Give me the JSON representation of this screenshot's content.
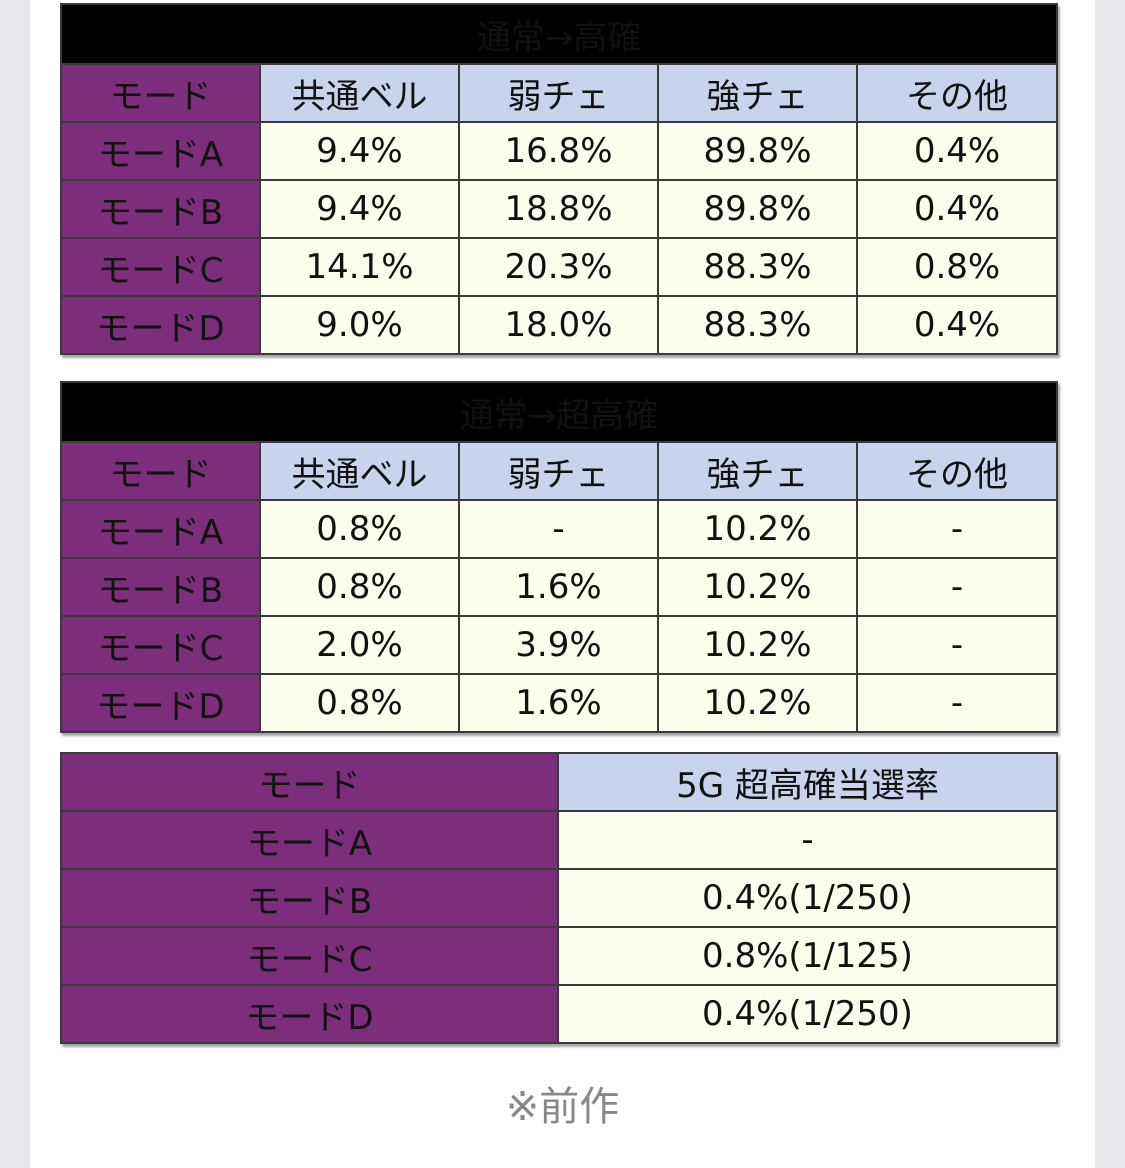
{
  "table1": {
    "title": "通常→高確",
    "headers": [
      "モード",
      "共通ベル",
      "弱チェ",
      "強チェ",
      "その他"
    ],
    "rows": [
      [
        "モードA",
        "9.4%",
        "16.8%",
        "89.8%",
        "0.4%"
      ],
      [
        "モードB",
        "9.4%",
        "18.8%",
        "89.8%",
        "0.4%"
      ],
      [
        "モードC",
        "14.1%",
        "20.3%",
        "88.3%",
        "0.8%"
      ],
      [
        "モードD",
        "9.0%",
        "18.0%",
        "88.3%",
        "0.4%"
      ]
    ]
  },
  "table2": {
    "title": "通常→超高確",
    "headers": [
      "モード",
      "共通ベル",
      "弱チェ",
      "強チェ",
      "その他"
    ],
    "rows": [
      [
        "モードA",
        "0.8%",
        "-",
        "10.2%",
        "-"
      ],
      [
        "モードB",
        "0.8%",
        "1.6%",
        "10.2%",
        "-"
      ],
      [
        "モードC",
        "2.0%",
        "3.9%",
        "10.2%",
        "-"
      ],
      [
        "モードD",
        "0.8%",
        "1.6%",
        "10.2%",
        "-"
      ]
    ]
  },
  "table3": {
    "headers": [
      "モード",
      "5G 超高確当選率"
    ],
    "rows": [
      [
        "モードA",
        "-"
      ],
      [
        "モードB",
        "0.4%(1/250)"
      ],
      [
        "モードC",
        "0.8%(1/125)"
      ],
      [
        "モードD",
        "0.4%(1/250)"
      ]
    ]
  },
  "note": "※前作",
  "colors": {
    "mode_cell_bg": "#7d2e7a",
    "header_bg": "#c9d3ee",
    "value_bg": "#fdfdee",
    "title_bg": "#000000"
  }
}
